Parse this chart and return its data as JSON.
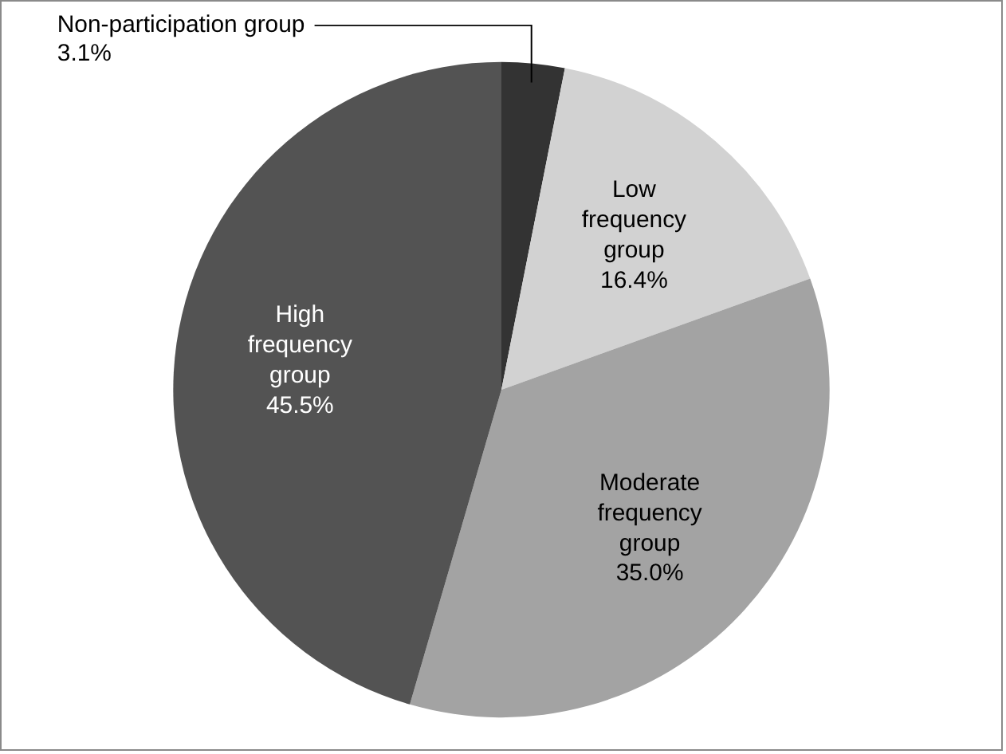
{
  "chart_data": {
    "type": "pie",
    "categories": [
      "Non-participation group",
      "Low frequency group",
      "Moderate frequency group",
      "High frequency group"
    ],
    "values": [
      3.1,
      16.4,
      35.0,
      45.5
    ],
    "value_labels": [
      "3.1%",
      "16.4%",
      "35.0%",
      "45.5%"
    ],
    "colors": [
      "#333333",
      "#d2d2d2",
      "#a3a3a3",
      "#535353"
    ],
    "legend": false
  }
}
